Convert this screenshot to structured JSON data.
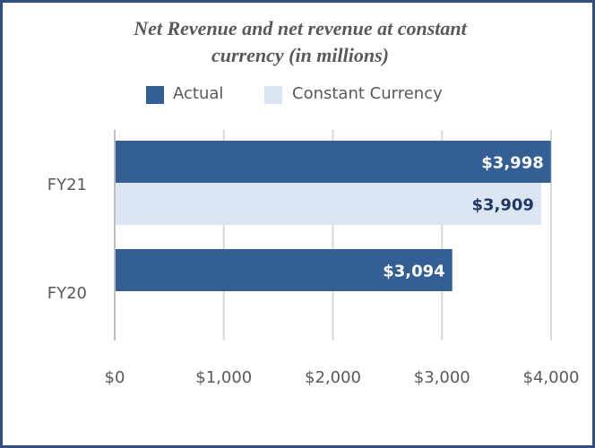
{
  "chart_data": {
    "type": "bar",
    "orientation": "horizontal",
    "title": "Net Revenue and net revenue at constant currency (in millions)",
    "title_lines": [
      "Net Revenue and net revenue at constant",
      "currency (in millions)"
    ],
    "categories": [
      "FY21",
      "FY20"
    ],
    "series": [
      {
        "name": "Actual",
        "color": "#345f94",
        "label_color": "#ffffff",
        "values": [
          3998,
          3094
        ],
        "labels": [
          "$3,998",
          "$3,094"
        ]
      },
      {
        "name": "Constant Currency",
        "color": "#dce6f2",
        "label_color": "#1f3864",
        "values": [
          3909,
          null
        ],
        "labels": [
          "$3,909",
          ""
        ]
      }
    ],
    "xlim": [
      0,
      4000
    ],
    "x_ticks": [
      0,
      1000,
      2000,
      3000,
      4000
    ],
    "x_tick_labels": [
      "$0",
      "$1,000",
      "$2,000",
      "$3,000",
      "$4,000"
    ],
    "xlabel": "",
    "ylabel": "",
    "grid": "vertical",
    "legend_position": "top"
  }
}
